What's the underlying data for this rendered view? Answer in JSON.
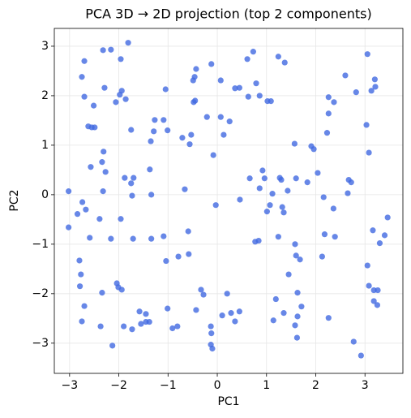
{
  "chart_data": {
    "type": "scatter",
    "title": "PCA 3D → 2D projection (top 2 components)",
    "xlabel": "PC1",
    "ylabel": "PC2",
    "color": "#4169e1",
    "grid": true,
    "xlim": [
      -3.31,
      3.77
    ],
    "ylim": [
      -3.61,
      3.36
    ],
    "xticks": [
      {
        "value": -3,
        "label": "−3"
      },
      {
        "value": -2,
        "label": "−2"
      },
      {
        "value": -1,
        "label": "−1"
      },
      0,
      1,
      2,
      3
    ],
    "yticks": [
      {
        "value": -3,
        "label": "−3"
      },
      {
        "value": -2,
        "label": "−2"
      },
      {
        "value": -1,
        "label": "−1"
      },
      0,
      1,
      2,
      3
    ],
    "x": [
      -1.81,
      -2.16,
      -2.32,
      -2.7,
      -1.96,
      0.73,
      1.24,
      1.37,
      3.05,
      -0.43,
      -0.12,
      0.61,
      -2.75,
      -2.29,
      -1.94,
      -1.98,
      -1.86,
      -2.06,
      -2.51,
      -2.7,
      -1.05,
      2.6,
      3.2,
      3.21,
      3.13,
      -0.46,
      -0.49,
      0.07,
      0.36,
      0.45,
      0.79,
      0.86,
      1.02,
      1.09,
      0.63,
      -0.45,
      -0.48,
      0.07,
      0.25,
      -0.21,
      2.26,
      2.37,
      2.82,
      2.26,
      3.03,
      -2.55,
      -2.62,
      -2.49,
      -1.75,
      -1.27,
      -1.09,
      -1.01,
      -0.71,
      -1.29,
      -0.53,
      0.13,
      -0.08,
      -0.56,
      -1.35,
      1.57,
      1.91,
      1.96,
      -2.31,
      3.08,
      2.23,
      -2.57,
      -2.34,
      -2.27,
      -1.88,
      -1.7,
      -1.37,
      -1.75,
      -2.32,
      -1.73,
      -1.34,
      -0.66,
      0.92,
      0.96,
      0.86,
      0.66,
      1.27,
      1.3,
      1.6,
      1.43,
      1.83,
      2.04,
      1.12,
      0.46,
      1.07,
      1.32,
      1.01,
      1.35,
      2.16,
      2.36,
      2.67,
      2.72,
      2.65,
      -3.02,
      -2.84,
      -2.74,
      -2.67,
      -2.39,
      -1.96,
      -0.03,
      3.46,
      3.4,
      3.16,
      3.3,
      -2.59,
      -2.16,
      -1.71,
      -1.34,
      -0.59,
      -1.09,
      0.77,
      0.84,
      1.24,
      1.58,
      2.18,
      2.39,
      -3.02,
      -2.8,
      -1.04,
      -0.79,
      -0.58,
      1.6,
      1.68,
      2.13,
      1.45,
      3.05,
      -2.79,
      -2.77,
      -2.04,
      -1.94,
      -2.01,
      -2.34,
      -0.33,
      0.2,
      -0.28,
      1.19,
      1.63,
      3.08,
      3.18,
      3.26,
      3.18,
      3.25,
      -2.7,
      -1.58,
      -1.45,
      -1.01,
      -0.43,
      0.1,
      0.45,
      0.28,
      1.35,
      1.71,
      2.26,
      -2.75,
      -2.37,
      -1.9,
      -1.73,
      -1.55,
      -1.45,
      -1.38,
      -0.91,
      -0.81,
      -0.13,
      -0.12,
      0.36,
      1.14,
      1.58,
      1.63,
      -2.13,
      -0.13,
      -0.1,
      1.62,
      2.77,
      2.92
    ],
    "values": [
      3.07,
      2.93,
      2.92,
      2.7,
      2.74,
      2.89,
      2.79,
      2.67,
      2.84,
      2.54,
      2.64,
      2.74,
      2.38,
      2.16,
      2.1,
      2.02,
      1.93,
      1.87,
      1.8,
      1.98,
      2.13,
      2.41,
      2.33,
      2.18,
      2.1,
      2.38,
      2.31,
      2.31,
      2.15,
      2.16,
      2.25,
      2.0,
      1.89,
      1.89,
      1.98,
      1.9,
      1.87,
      1.57,
      1.48,
      1.57,
      1.64,
      1.87,
      2.07,
      1.97,
      1.41,
      1.36,
      1.38,
      1.36,
      1.31,
      1.51,
      1.51,
      1.3,
      1.15,
      1.28,
      1.21,
      1.21,
      0.8,
      1.02,
      1.08,
      1.03,
      0.98,
      0.92,
      0.87,
      0.85,
      1.25,
      0.56,
      0.66,
      0.46,
      0.34,
      0.34,
      0.51,
      0.23,
      0.07,
      -0.02,
      0.0,
      0.11,
      0.49,
      0.33,
      0.13,
      0.33,
      0.34,
      0.3,
      0.33,
      0.08,
      0.25,
      0.44,
      0.02,
      -0.1,
      -0.21,
      -0.25,
      -0.34,
      -0.36,
      -0.05,
      -0.28,
      0.3,
      0.25,
      0.03,
      0.07,
      -0.39,
      -0.15,
      -0.3,
      -0.49,
      -0.49,
      -0.21,
      -0.46,
      -0.82,
      -0.72,
      -0.98,
      -0.87,
      -0.89,
      -0.89,
      -0.89,
      -0.74,
      -0.84,
      -0.95,
      -0.93,
      -0.85,
      -1.0,
      -0.8,
      -0.85,
      -0.66,
      -1.33,
      -1.34,
      -1.25,
      -1.2,
      -1.23,
      -1.31,
      -1.25,
      -1.61,
      -1.43,
      -1.85,
      -1.61,
      -1.79,
      -1.92,
      -1.87,
      -1.98,
      -1.92,
      -2.0,
      -2.02,
      -2.11,
      -1.98,
      -1.84,
      -1.93,
      -1.93,
      -2.15,
      -2.23,
      -2.25,
      -2.36,
      -2.41,
      -2.3,
      -2.33,
      -2.44,
      -2.36,
      -2.39,
      -2.39,
      -2.26,
      -2.49,
      -2.56,
      -2.66,
      -2.66,
      -2.72,
      -2.61,
      -2.57,
      -2.57,
      -2.7,
      -2.66,
      -2.66,
      -2.8,
      -2.56,
      -2.54,
      -2.64,
      -2.46,
      -3.05,
      -3.03,
      -3.11,
      -2.89,
      -2.97,
      -3.25
    ]
  }
}
